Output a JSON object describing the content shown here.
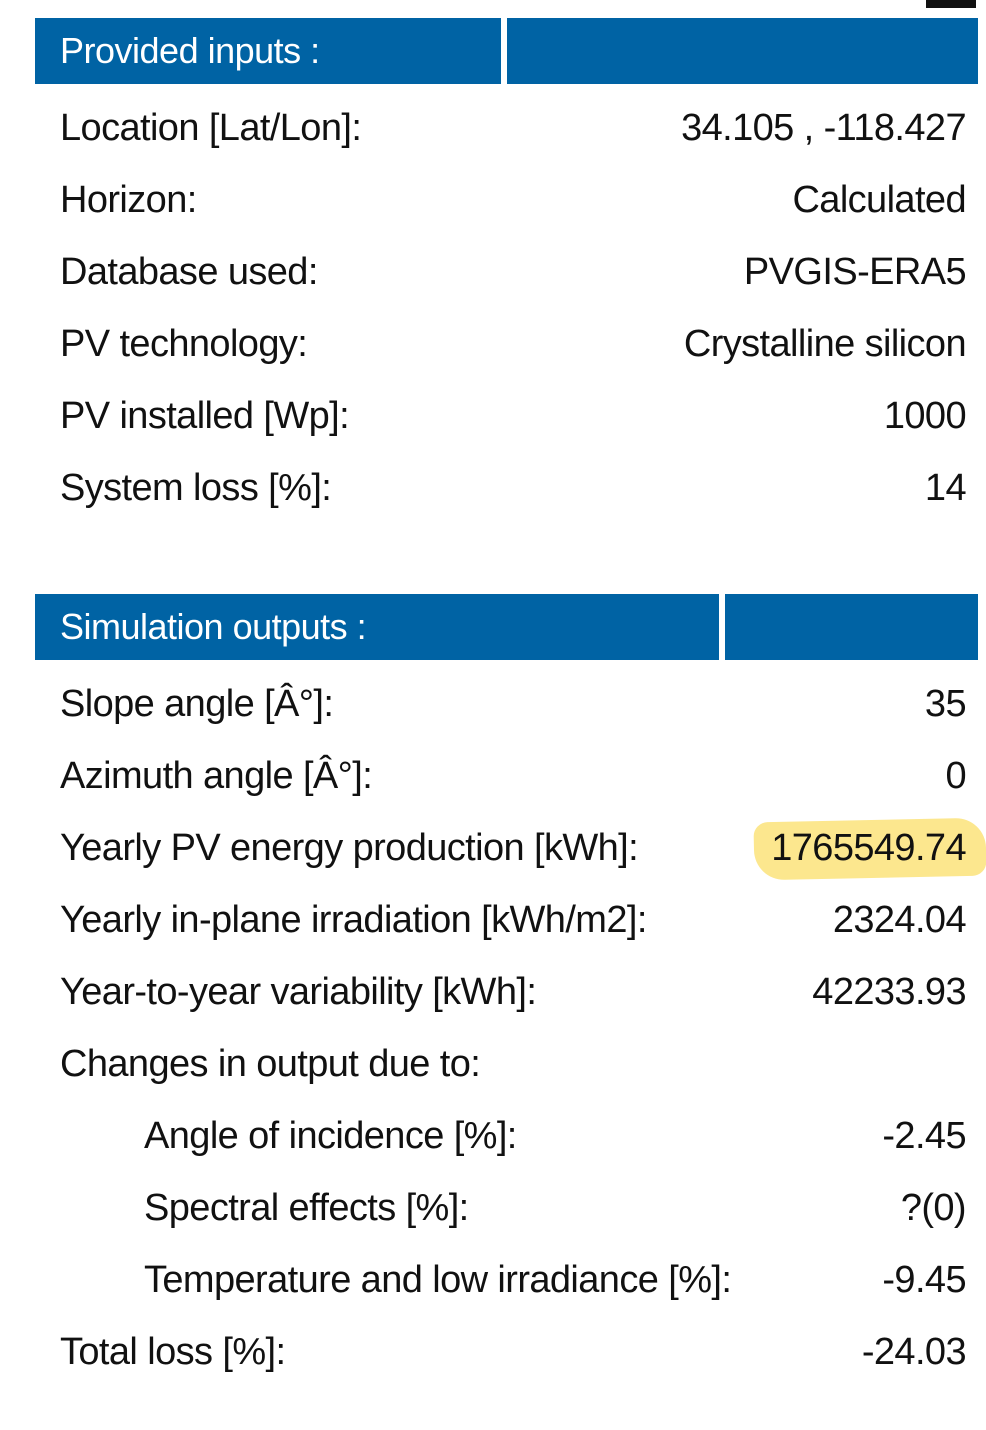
{
  "provided_inputs": {
    "title": "Provided inputs :",
    "rows": [
      {
        "label": "Location [Lat/Lon]:",
        "value": "34.105 , -118.427"
      },
      {
        "label": "Horizon:",
        "value": "Calculated"
      },
      {
        "label": "Database used:",
        "value": "PVGIS-ERA5"
      },
      {
        "label": "PV technology:",
        "value": "Crystalline silicon"
      },
      {
        "label": "PV installed [Wp]:",
        "value": "1000"
      },
      {
        "label": "System loss [%]:",
        "value": "14"
      }
    ]
  },
  "simulation_outputs": {
    "title": "Simulation outputs :",
    "rows": [
      {
        "label": "Slope angle [Â°]:",
        "value": "35"
      },
      {
        "label": "Azimuth angle [Â°]:",
        "value": "0"
      },
      {
        "label": "Yearly PV energy production [kWh]:",
        "value": "1765549.74",
        "highlighted": true
      },
      {
        "label": "Yearly in-plane irradiation [kWh/m2]:",
        "value": "2324.04"
      },
      {
        "label": "Year-to-year variability [kWh]:",
        "value": "42233.93"
      },
      {
        "label": "Changes in output due to:",
        "value": ""
      },
      {
        "label": "Angle of incidence [%]:",
        "value": "-2.45"
      },
      {
        "label": "Spectral effects [%]:",
        "value": "?(0)"
      },
      {
        "label": "Temperature and low irradiance [%]:",
        "value": "-9.45"
      },
      {
        "label": "Total loss [%]:",
        "value": "-24.03"
      }
    ]
  },
  "colors": {
    "header_blue": "#0063a4",
    "highlight_yellow": "#fbe37a"
  }
}
